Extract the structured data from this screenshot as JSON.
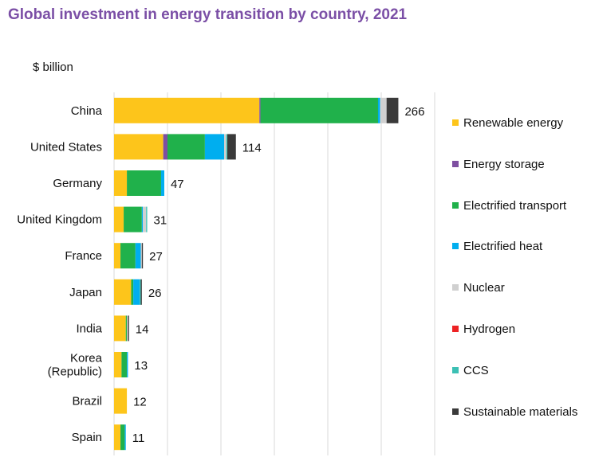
{
  "chart_data": {
    "type": "bar",
    "orientation": "horizontal",
    "stacked": true,
    "title": "Global investment in energy transition by country, 2021",
    "unit_label": "$ billion",
    "categories": [
      "China",
      "United States",
      "Germany",
      "United Kingdom",
      "France",
      "Japan",
      "India",
      "Korea (Republic)",
      "Brazil",
      "Spain"
    ],
    "category_lines": [
      [
        "China"
      ],
      [
        "United States"
      ],
      [
        "Germany"
      ],
      [
        "United Kingdom"
      ],
      [
        "France"
      ],
      [
        "Japan"
      ],
      [
        "India"
      ],
      [
        "Korea",
        "(Republic)"
      ],
      [
        "Brazil"
      ],
      [
        "Spain"
      ]
    ],
    "totals": [
      266,
      114,
      47,
      31,
      27,
      26,
      14,
      13,
      12,
      11
    ],
    "total_labels": [
      "266",
      "114",
      "47",
      "31",
      "27",
      "26",
      "14",
      "13",
      "12",
      "11"
    ],
    "xlim": [
      0,
      300
    ],
    "grid": true,
    "legend_position": "right",
    "series": [
      {
        "name": "Renewable energy",
        "color": "#fdc51b",
        "values": [
          136,
          46,
          12,
          9,
          6,
          16,
          11,
          7,
          12,
          6
        ]
      },
      {
        "name": "Energy storage",
        "color": "#7e4fa1",
        "values": [
          1,
          4,
          0,
          0,
          0,
          0,
          0,
          0,
          0,
          0
        ]
      },
      {
        "name": "Electrified transport",
        "color": "#20b14b",
        "values": [
          110,
          35,
          32,
          17,
          14,
          2,
          1,
          5,
          0,
          4
        ]
      },
      {
        "name": "Electrified heat",
        "color": "#00aeef",
        "values": [
          2,
          18,
          3,
          1,
          5,
          6,
          0,
          1,
          0,
          1
        ]
      },
      {
        "name": "Nuclear",
        "color": "#d0d0d0",
        "values": [
          6,
          2,
          0,
          3,
          1,
          0,
          1,
          0,
          0,
          0
        ]
      },
      {
        "name": "Hydrogen",
        "color": "#ed2224",
        "values": [
          0,
          0,
          0,
          0,
          0,
          0,
          0,
          0,
          0,
          0
        ]
      },
      {
        "name": "CCS",
        "color": "#3cc0b4",
        "values": [
          0,
          1,
          0,
          1,
          0,
          1,
          0,
          0,
          0,
          0
        ]
      },
      {
        "name": "Sustainable materials",
        "color": "#3a3a3a",
        "values": [
          11,
          8,
          0,
          0,
          1,
          1,
          1,
          0,
          0,
          0
        ]
      }
    ]
  }
}
